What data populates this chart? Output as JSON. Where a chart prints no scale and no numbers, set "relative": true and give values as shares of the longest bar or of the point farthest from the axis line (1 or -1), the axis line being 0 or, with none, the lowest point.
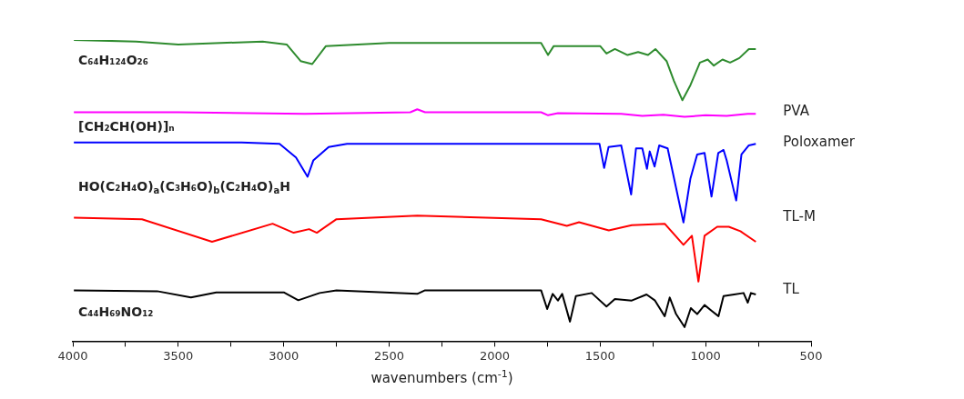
{
  "chart_data": {
    "type": "line",
    "relative": true,
    "xlabel": "wavenumbers (cm$^{-1}$)",
    "xlim": [
      4000,
      500
    ],
    "xticks": [
      4000,
      {
        "value": 3750,
        "label": null
      },
      3500,
      {
        "value": 3250,
        "label": null
      },
      3000,
      {
        "value": 2750,
        "label": null
      },
      2500,
      {
        "value": 2250,
        "label": null
      },
      2000,
      {
        "value": 1750,
        "label": null
      },
      1500,
      {
        "value": 1250,
        "label": null
      },
      1000,
      {
        "value": 750,
        "label": null
      },
      500
    ],
    "grid": false,
    "legend": false,
    "marker": "none",
    "line_style": "solid",
    "tick_labels": "x",
    "series": [
      {
        "color": "#2e8b2e",
        "x": [
          3995,
          3700,
          3500,
          3100,
          2986,
          2920,
          2865,
          2800,
          2500,
          1780,
          1747,
          1720,
          1500,
          1470,
          1430,
          1370,
          1320,
          1273,
          1238,
          1185,
          1150,
          1110,
          1072,
          1027,
          990,
          961,
          920,
          884,
          840,
          795,
          762
        ],
        "values": [
          1.0,
          0.995,
          0.985,
          0.995,
          0.985,
          0.93,
          0.92,
          0.98,
          0.99,
          0.99,
          0.95,
          0.98,
          0.98,
          0.955,
          0.97,
          0.95,
          0.96,
          0.95,
          0.97,
          0.93,
          0.864,
          0.8,
          0.85,
          0.925,
          0.935,
          0.915,
          0.935,
          0.925,
          0.94,
          0.97,
          0.97
        ]
      },
      {
        "name": "PVA",
        "color": "#ff00ff",
        "x": [
          3995,
          3500,
          2900,
          2400,
          2367,
          2330,
          1780,
          1747,
          1700,
          1400,
          1300,
          1200,
          1100,
          1000,
          900,
          800,
          762
        ],
        "values": [
          0.76,
          0.76,
          0.755,
          0.76,
          0.77,
          0.76,
          0.76,
          0.75,
          0.757,
          0.755,
          0.748,
          0.752,
          0.745,
          0.75,
          0.748,
          0.755,
          0.755
        ]
      },
      {
        "name": "Poloxamer",
        "color": "#0000ff",
        "x": [
          3995,
          3200,
          3020,
          2942,
          2887,
          2860,
          2787,
          2700,
          1503,
          1481,
          1460,
          1400,
          1353,
          1330,
          1300,
          1278,
          1265,
          1242,
          1220,
          1180,
          1105,
          1072,
          1040,
          1005,
          972,
          940,
          915,
          900,
          855,
          830,
          795,
          762
        ],
        "values": [
          0.66,
          0.66,
          0.655,
          0.61,
          0.546,
          0.6,
          0.645,
          0.655,
          0.655,
          0.575,
          0.645,
          0.65,
          0.487,
          0.64,
          0.64,
          0.572,
          0.63,
          0.58,
          0.65,
          0.64,
          0.394,
          0.54,
          0.62,
          0.625,
          0.48,
          0.625,
          0.635,
          0.6,
          0.467,
          0.62,
          0.65,
          0.655
        ]
      },
      {
        "name": "TL-M",
        "color": "#ff0000",
        "x": [
          3995,
          3672,
          3340,
          3053,
          2953,
          2880,
          2843,
          2750,
          2367,
          1780,
          1658,
          1600,
          1459,
          1350,
          1194,
          1105,
          1065,
          1034,
          1005,
          945,
          890,
          835,
          762
        ],
        "values": [
          0.41,
          0.405,
          0.33,
          0.39,
          0.36,
          0.372,
          0.36,
          0.405,
          0.417,
          0.405,
          0.383,
          0.395,
          0.368,
          0.385,
          0.39,
          0.32,
          0.35,
          0.198,
          0.35,
          0.38,
          0.38,
          0.365,
          0.33
        ]
      },
      {
        "name": "TL",
        "color": "#000000",
        "x": [
          3995,
          3600,
          3440,
          3320,
          3000,
          2931,
          2830,
          2750,
          2367,
          2330,
          1780,
          1751,
          1725,
          1700,
          1680,
          1643,
          1615,
          1540,
          1470,
          1430,
          1350,
          1280,
          1240,
          1194,
          1170,
          1140,
          1100,
          1070,
          1040,
          1005,
          970,
          939,
          915,
          865,
          820,
          800,
          785,
          762
        ],
        "values": [
          0.169,
          0.166,
          0.145,
          0.162,
          0.162,
          0.136,
          0.16,
          0.169,
          0.157,
          0.169,
          0.169,
          0.107,
          0.157,
          0.135,
          0.157,
          0.065,
          0.15,
          0.16,
          0.115,
          0.14,
          0.135,
          0.155,
          0.135,
          0.083,
          0.145,
          0.09,
          0.047,
          0.11,
          0.09,
          0.12,
          0.1,
          0.083,
          0.15,
          0.155,
          0.16,
          0.128,
          0.16,
          0.155
        ]
      }
    ],
    "annotations": [
      "C₆₄H₁₂₄O₂₆",
      "[CH₂CH(OH)]ₙ",
      "HO(C₂H₄O)$_{a}$(C₃H₆O)$_{b}$(C₂H₄O)$_{a}$H",
      "C₄₄H₆₉NO₁₂"
    ]
  }
}
